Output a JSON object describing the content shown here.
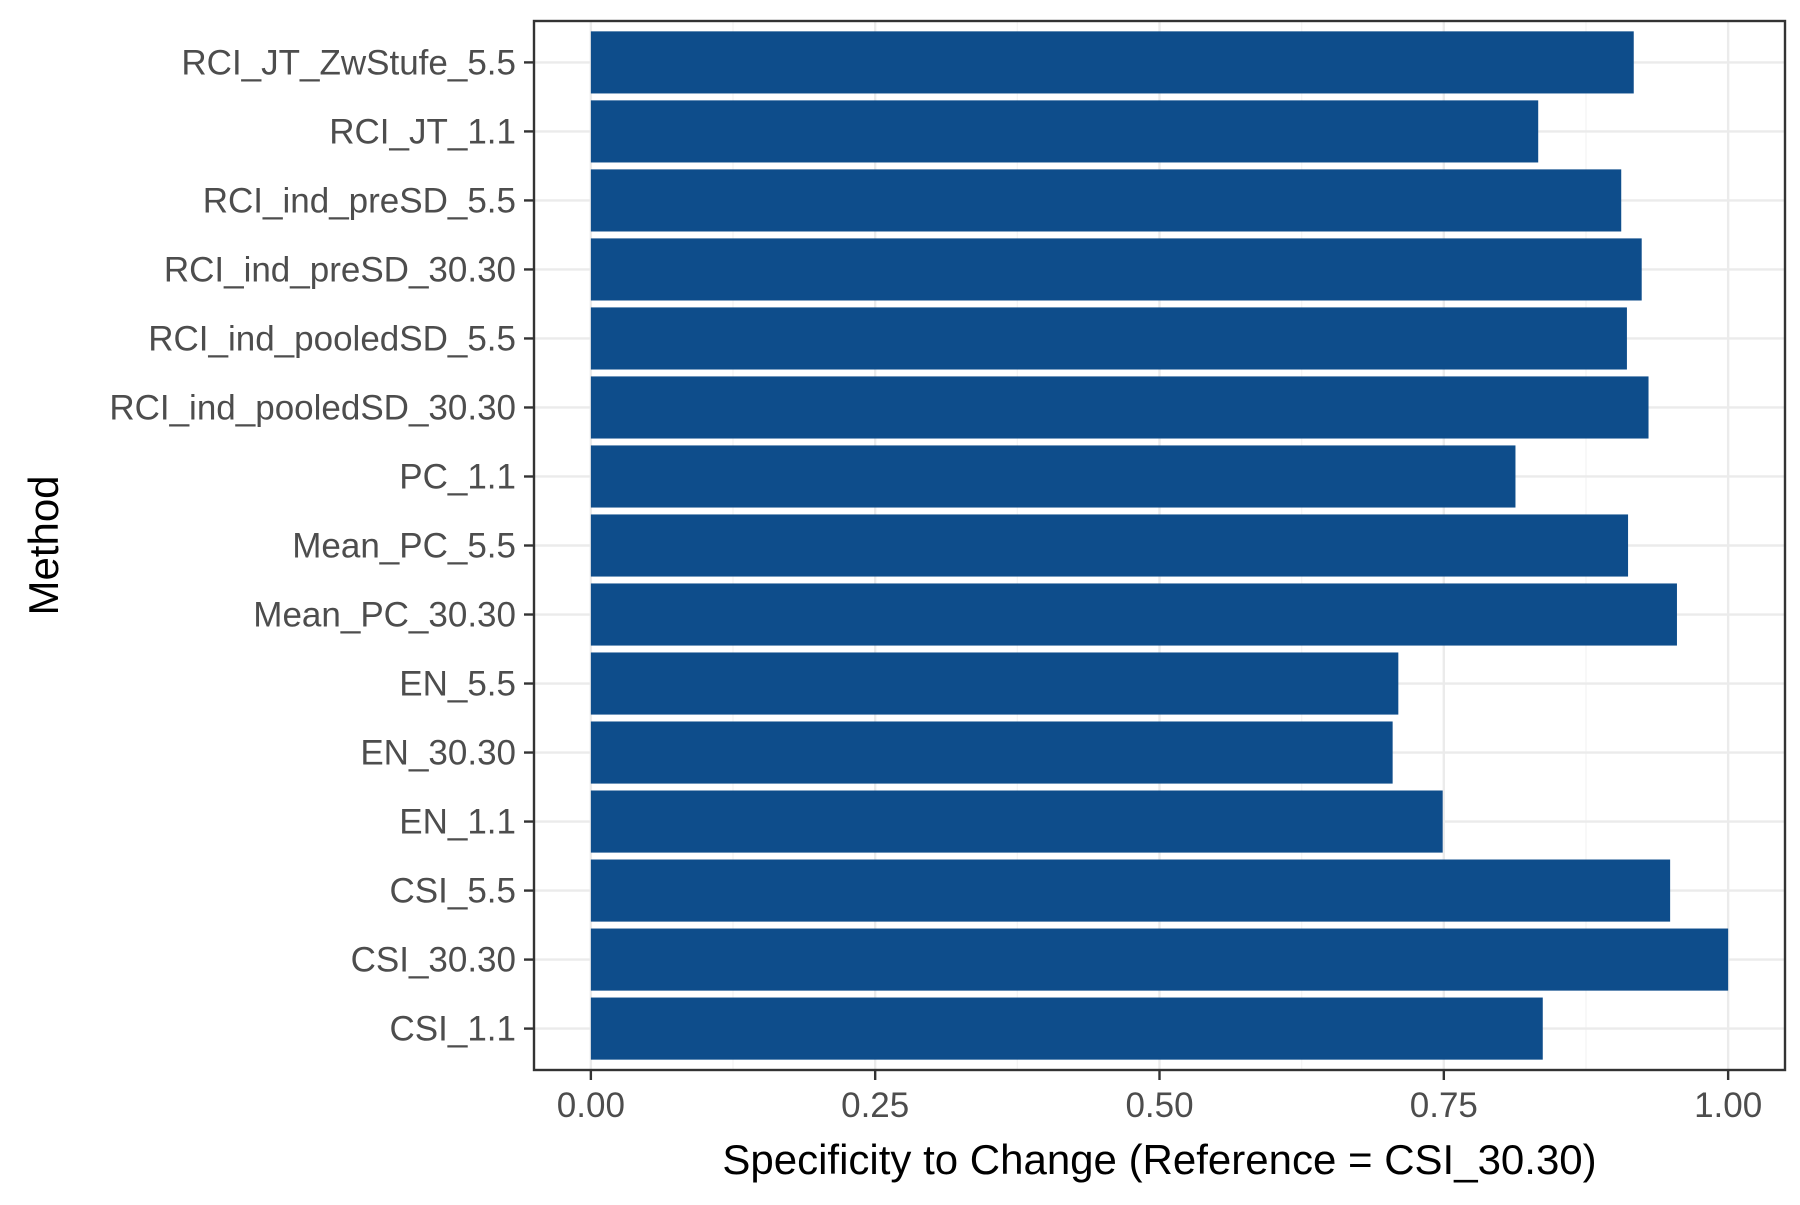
{
  "chart_data": {
    "type": "bar",
    "orientation": "horizontal",
    "title": "",
    "xlabel": "Specificity to Change (Reference = CSI_30.30)",
    "ylabel": "Method",
    "xlim": [
      -0.05,
      1.05
    ],
    "x_ticks": [
      0.0,
      0.25,
      0.5,
      0.75,
      1.0
    ],
    "x_tick_labels": [
      "0.00",
      "0.25",
      "0.50",
      "0.75",
      "1.00"
    ],
    "grid": true,
    "legend": "none",
    "bar_color": "#0e4d8b",
    "categories": [
      "RCI_JT_ZwStufe_5.5",
      "RCI_JT_1.1",
      "RCI_ind_preSD_5.5",
      "RCI_ind_preSD_30.30",
      "RCI_ind_pooledSD_5.5",
      "RCI_ind_pooledSD_30.30",
      "PC_1.1",
      "Mean_PC_5.5",
      "Mean_PC_30.30",
      "EN_5.5",
      "EN_30.30",
      "EN_1.1",
      "CSI_5.5",
      "CSI_30.30",
      "CSI_1.1"
    ],
    "values": [
      0.917,
      0.833,
      0.906,
      0.924,
      0.911,
      0.93,
      0.813,
      0.912,
      0.955,
      0.71,
      0.705,
      0.749,
      0.949,
      1.0,
      0.837
    ]
  }
}
